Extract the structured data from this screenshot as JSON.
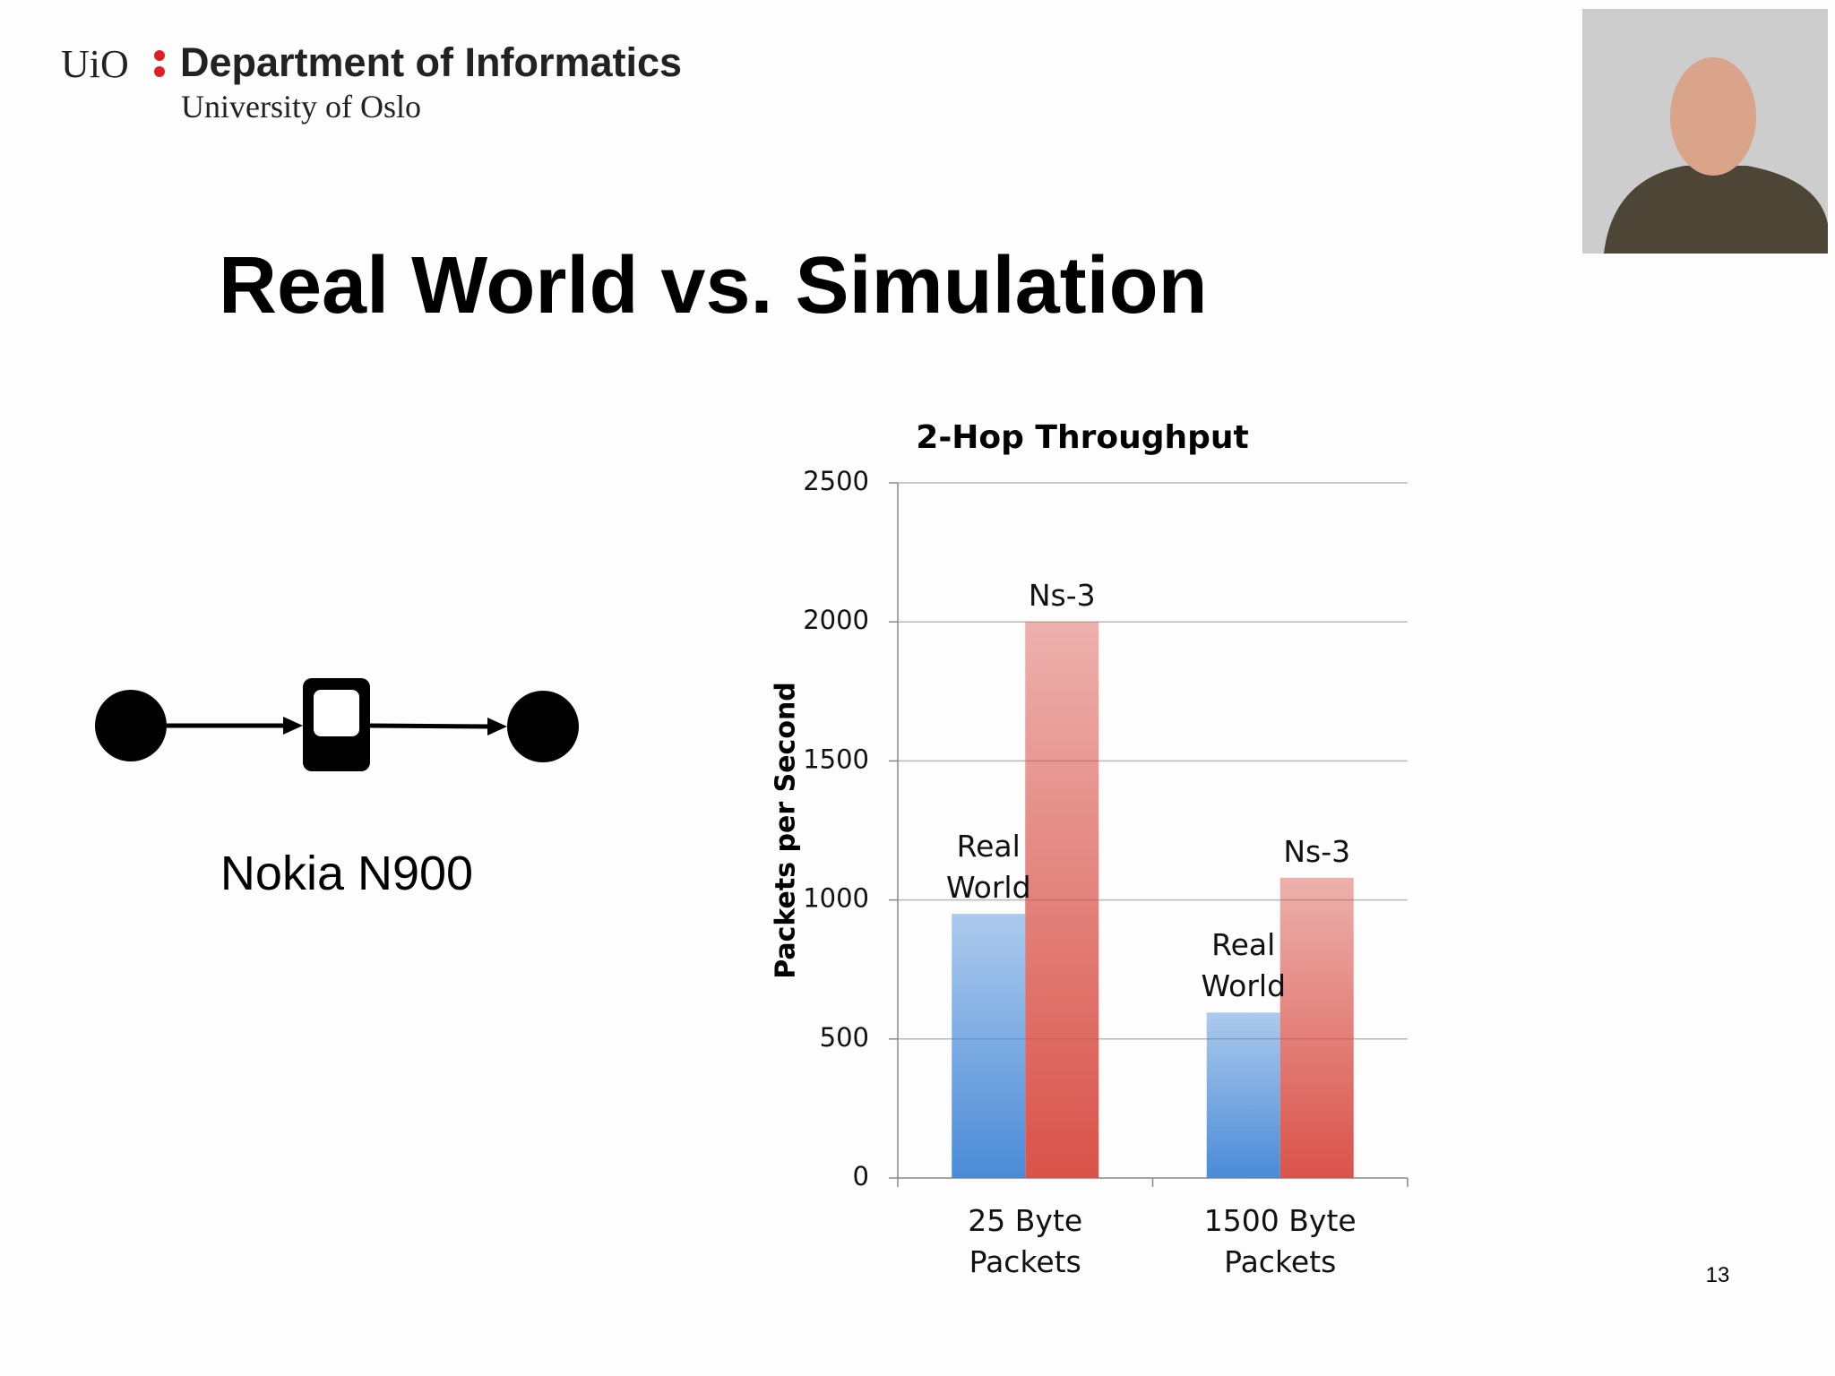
{
  "header": {
    "logo": "UiO",
    "department": "Department of Informatics",
    "university": "University of Oslo"
  },
  "title": "Real World vs. Simulation",
  "diagram": {
    "label": "Nokia N900"
  },
  "page_number": "13",
  "chart_data": {
    "type": "bar",
    "title": "2-Hop Throughput",
    "y_label": "Packets per Second",
    "categories": [
      "25 Byte Packets",
      "1500 Byte Packets"
    ],
    "series": [
      {
        "name": "Real World",
        "color": "#4a8bd8",
        "values": [
          950,
          595
        ]
      },
      {
        "name": "Ns-3",
        "color": "#d9534a",
        "values": [
          2000,
          1080
        ]
      }
    ],
    "ylim": [
      0,
      2500
    ],
    "yticks": [
      0,
      500,
      1000,
      1500,
      2000,
      2500
    ],
    "grid": true
  }
}
